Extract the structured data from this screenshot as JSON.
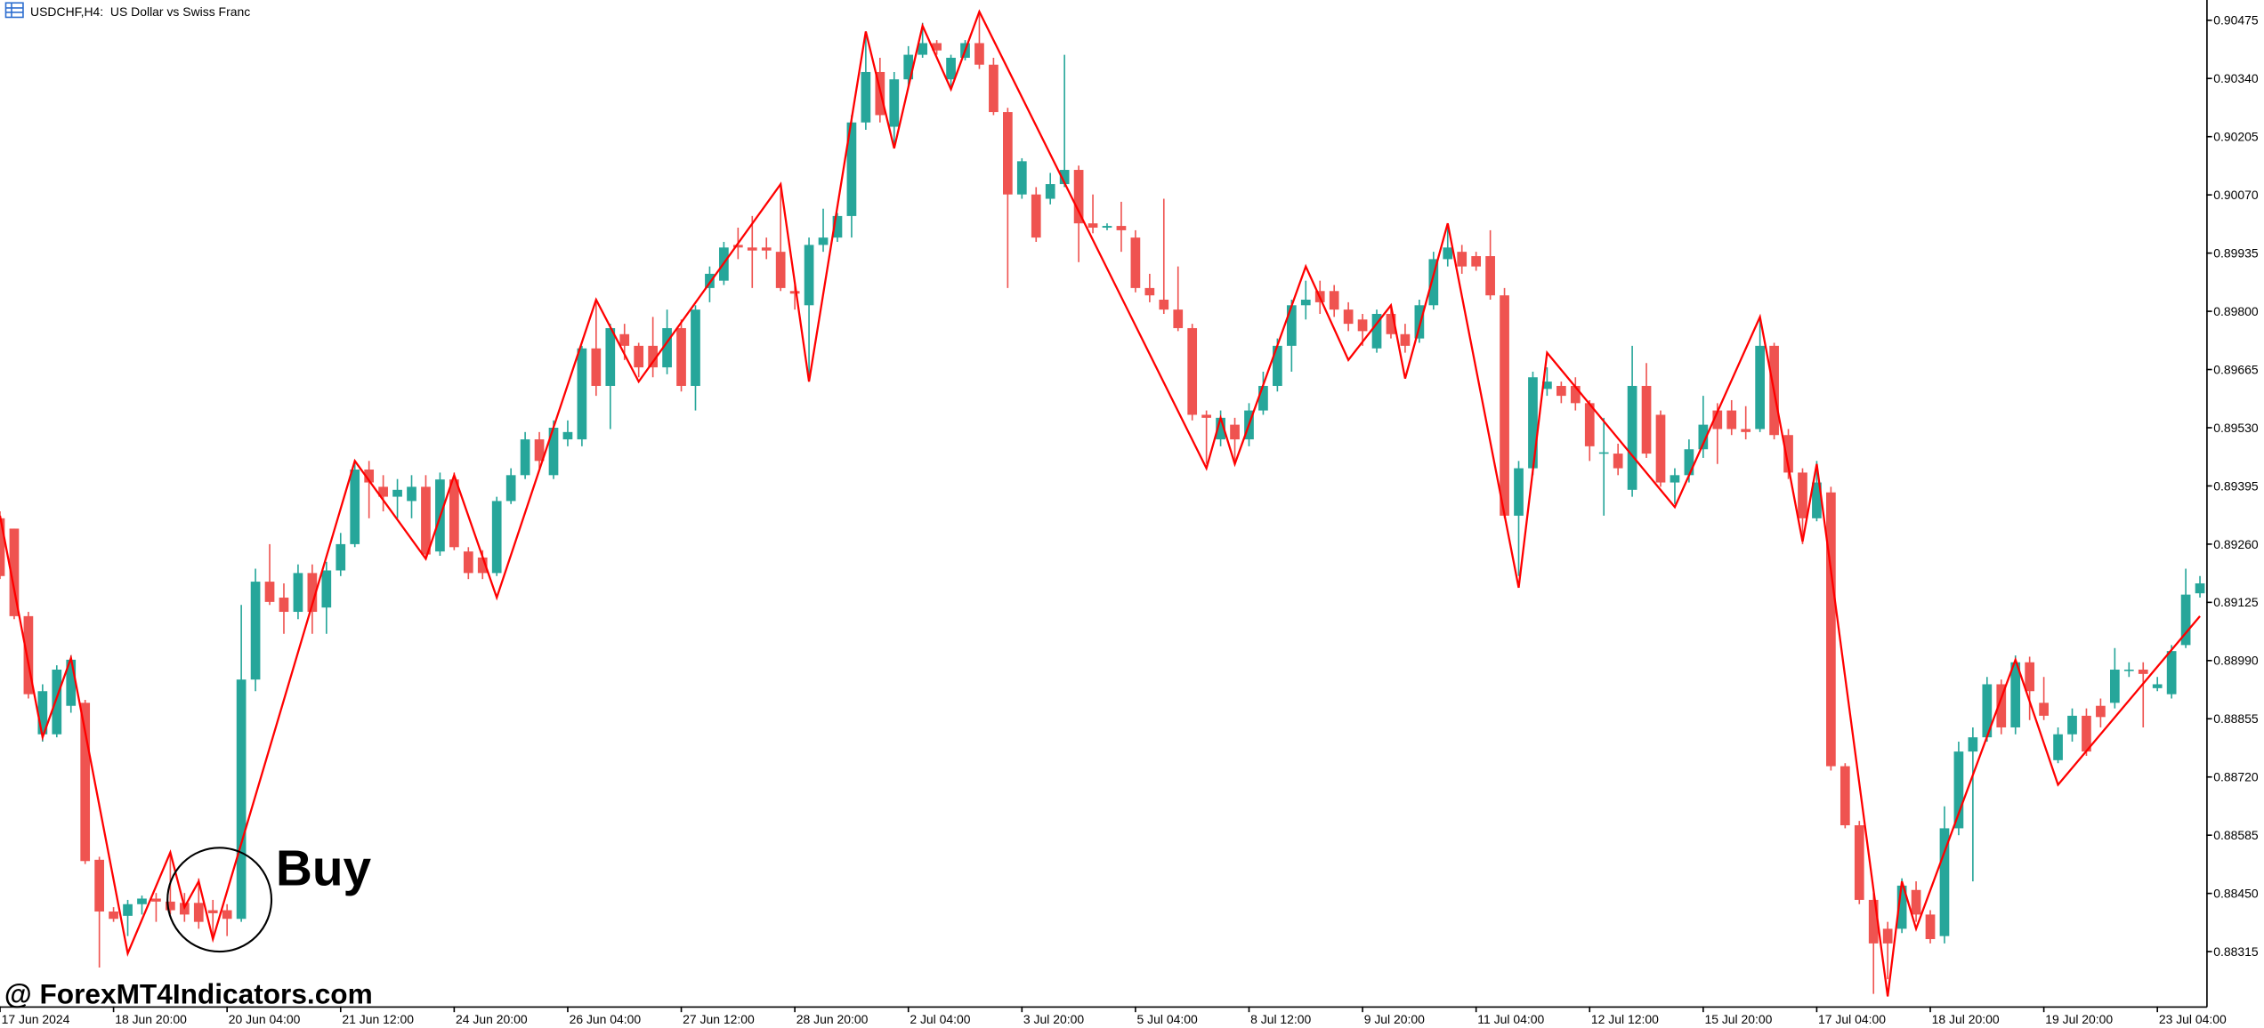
{
  "chart_data": {
    "type": "candlestick",
    "title": "USDCHF,H4:  US Dollar vs Swiss Franc",
    "annotation": "Buy",
    "watermark": "@ ForexMT4Indicators.com",
    "up_color": "#26a69a",
    "down_color": "#ef5350",
    "categories": [
      "17 Jun 2024",
      null,
      null,
      null,
      null,
      null,
      null,
      null,
      "18 Jun 20:00",
      null,
      null,
      null,
      null,
      null,
      null,
      null,
      "20 Jun 04:00",
      null,
      null,
      null,
      null,
      null,
      null,
      null,
      "21 Jun 12:00",
      null,
      null,
      null,
      null,
      null,
      null,
      null,
      "24 Jun 20:00",
      null,
      null,
      null,
      null,
      null,
      null,
      null,
      "26 Jun 04:00",
      null,
      null,
      null,
      null,
      null,
      null,
      null,
      "27 Jun 12:00",
      null,
      null,
      null,
      null,
      null,
      null,
      null,
      "28 Jun 20:00",
      null,
      null,
      null,
      null,
      null,
      null,
      null,
      "2 Jul 04:00",
      null,
      null,
      null,
      null,
      null,
      null,
      null,
      "3 Jul 20:00",
      null,
      null,
      null,
      null,
      null,
      null,
      null,
      "5 Jul 04:00",
      null,
      null,
      null,
      null,
      null,
      null,
      null,
      "8 Jul 12:00",
      null,
      null,
      null,
      null,
      null,
      null,
      null,
      "9 Jul 20:00",
      null,
      null,
      null,
      null,
      null,
      null,
      null,
      "11 Jul 04:00",
      null,
      null,
      null,
      null,
      null,
      null,
      null,
      "12 Jul 12:00",
      null,
      null,
      null,
      null,
      null,
      null,
      null,
      "15 Jul 20:00",
      null,
      null,
      null,
      null,
      null,
      null,
      null,
      "17 Jul 04:00",
      null,
      null,
      null,
      null,
      null,
      null,
      null,
      "18 Jul 20:00",
      null,
      null,
      null,
      null,
      null,
      null,
      null,
      "19 Jul 20:00",
      null,
      null,
      null,
      null,
      null,
      null,
      null,
      "23 Jul 04:00",
      null,
      null,
      null
    ],
    "open": [
      0.8932,
      0.89296,
      0.89093,
      0.88819,
      0.88819,
      0.88885,
      0.88892,
      0.88528,
      0.88408,
      0.88398,
      0.88425,
      0.88438,
      0.88431,
      0.88428,
      0.88428,
      0.88411,
      0.88411,
      0.88391,
      0.88946,
      0.89173,
      0.89136,
      0.89103,
      0.89193,
      0.89113,
      0.89199,
      0.8926,
      0.89433,
      0.89393,
      0.8937,
      0.8936,
      0.89393,
      0.89243,
      0.8941,
      0.89243,
      0.89229,
      0.89193,
      0.8936,
      0.8942,
      0.89503,
      0.8942,
      0.89503,
      0.89503,
      0.89714,
      0.89627,
      0.89747,
      0.8972,
      0.8972,
      0.8967,
      0.89761,
      0.89627,
      0.89854,
      0.89871,
      0.89954,
      0.89948,
      0.89948,
      0.89938,
      0.89847,
      0.89814,
      0.89954,
      0.89971,
      0.90021,
      0.90238,
      0.90355,
      0.90228,
      0.90338,
      0.90395,
      0.90422,
      0.90338,
      0.90388,
      0.90422,
      0.90372,
      0.90262,
      0.90071,
      0.90071,
      0.90061,
      0.90095,
      0.90128,
      0.90004,
      0.89994,
      0.89998,
      0.89971,
      0.89854,
      0.89827,
      0.89804,
      0.89761,
      0.8956,
      0.89503,
      0.89537,
      0.89503,
      0.8957,
      0.89627,
      0.8972,
      0.89814,
      0.89847,
      0.89847,
      0.89804,
      0.89781,
      0.89714,
      0.89794,
      0.89747,
      0.89737,
      0.89814,
      0.89921,
      0.89938,
      0.89928,
      0.89928,
      0.89837,
      0.89326,
      0.89436,
      0.8962,
      0.89627,
      0.89627,
      0.89587,
      0.8947,
      0.8947,
      0.89386,
      0.89627,
      0.8956,
      0.89403,
      0.8942,
      0.8948,
      0.8957,
      0.8957,
      0.89527,
      0.89527,
      0.8972,
      0.89513,
      0.89426,
      0.8932,
      0.8938,
      0.88745,
      0.88608,
      0.88435,
      0.88368,
      0.88368,
      0.88458,
      0.88401,
      0.88351,
      0.88601,
      0.88779,
      0.88812,
      0.88935,
      0.88835,
      0.88986,
      0.88892,
      0.88759,
      0.88819,
      0.88862,
      0.88885,
      0.88892,
      0.88969,
      0.88969,
      0.88926,
      0.88912,
      0.89026,
      0.89146
    ],
    "high": [
      0.89336,
      0.89296,
      0.89103,
      0.88935,
      0.88979,
      0.89002,
      0.88899,
      0.88535,
      0.88418,
      0.88435,
      0.88445,
      0.88451,
      0.88545,
      0.88451,
      0.88485,
      0.88435,
      0.88425,
      0.89119,
      0.89203,
      0.8926,
      0.89169,
      0.89213,
      0.89213,
      0.89219,
      0.89286,
      0.89453,
      0.89453,
      0.8942,
      0.89411,
      0.8942,
      0.8942,
      0.89426,
      0.89426,
      0.89253,
      0.89246,
      0.8937,
      0.89436,
      0.8952,
      0.8952,
      0.89547,
      0.89547,
      0.8972,
      0.89821,
      0.89771,
      0.89771,
      0.89727,
      0.89787,
      0.89804,
      0.89781,
      0.89814,
      0.89904,
      0.89961,
      0.89994,
      0.90021,
      0.89971,
      0.90095,
      0.89861,
      0.89971,
      0.90038,
      0.90028,
      0.90255,
      0.90449,
      0.90388,
      0.90355,
      0.90415,
      0.90469,
      0.90429,
      0.90395,
      0.90429,
      0.90495,
      0.90388,
      0.90272,
      0.90155,
      0.90088,
      0.90121,
      0.90395,
      0.90138,
      0.90071,
      0.90004,
      0.90054,
      0.89988,
      0.89887,
      0.90061,
      0.89904,
      0.89771,
      0.8957,
      0.8957,
      0.89553,
      0.89587,
      0.8966,
      0.89737,
      0.89827,
      0.89871,
      0.89871,
      0.89861,
      0.89821,
      0.89794,
      0.89804,
      0.89814,
      0.89771,
      0.89827,
      0.89938,
      0.90004,
      0.89954,
      0.89938,
      0.89988,
      0.89854,
      0.89453,
      0.8966,
      0.8967,
      0.89637,
      0.89647,
      0.89594,
      0.89553,
      0.89493,
      0.8972,
      0.8968,
      0.8957,
      0.89436,
      0.89503,
      0.89604,
      0.89587,
      0.89594,
      0.8958,
      0.89787,
      0.89727,
      0.89527,
      0.89436,
      0.89453,
      0.89393,
      0.88752,
      0.88618,
      0.88451,
      0.88384,
      0.88485,
      0.88478,
      0.88411,
      0.88652,
      0.88802,
      0.88835,
      0.88952,
      0.88946,
      0.89002,
      0.88999,
      0.88952,
      0.88835,
      0.88879,
      0.88879,
      0.88902,
      0.89019,
      0.88986,
      0.88986,
      0.88952,
      0.89026,
      0.89203,
      0.89186
    ],
    "low": [
      0.89179,
      0.89086,
      0.88902,
      0.88802,
      0.88812,
      0.88869,
      0.88518,
      0.88278,
      0.88384,
      0.88351,
      0.88401,
      0.88384,
      0.88401,
      0.88384,
      0.88368,
      0.88351,
      0.88351,
      0.88384,
      0.88919,
      0.89119,
      0.89052,
      0.89086,
      0.89052,
      0.89052,
      0.89186,
      0.89253,
      0.8932,
      0.89336,
      0.8932,
      0.8932,
      0.89226,
      0.89233,
      0.89246,
      0.89179,
      0.89179,
      0.89186,
      0.89353,
      0.89411,
      0.89436,
      0.89411,
      0.89487,
      0.89487,
      0.89604,
      0.89527,
      0.89687,
      0.89647,
      0.89647,
      0.89654,
      0.89614,
      0.8957,
      0.89821,
      0.89861,
      0.89921,
      0.89854,
      0.89921,
      0.89847,
      0.89804,
      0.89637,
      0.89938,
      0.89961,
      0.89971,
      0.90221,
      0.90238,
      0.90181,
      0.9032,
      0.90388,
      0.90395,
      0.90315,
      0.90382,
      0.90362,
      0.90255,
      0.89854,
      0.90061,
      0.89961,
      0.90048,
      0.90088,
      0.89914,
      0.89981,
      0.89988,
      0.89938,
      0.89844,
      0.89821,
      0.89794,
      0.89754,
      0.89547,
      0.89446,
      0.89487,
      0.89446,
      0.89487,
      0.8956,
      0.89614,
      0.8966,
      0.89781,
      0.89794,
      0.89787,
      0.89754,
      0.8972,
      0.89704,
      0.89737,
      0.89704,
      0.89727,
      0.89804,
      0.89904,
      0.89887,
      0.89894,
      0.89827,
      0.8932,
      0.89186,
      0.8942,
      0.89604,
      0.89587,
      0.8957,
      0.89453,
      0.89326,
      0.8942,
      0.8937,
      0.8946,
      0.89393,
      0.89353,
      0.89403,
      0.8946,
      0.89446,
      0.89513,
      0.89503,
      0.8952,
      0.89503,
      0.89411,
      0.8926,
      0.89313,
      0.88735,
      0.88601,
      0.88425,
      0.88217,
      0.88251,
      0.88358,
      0.88384,
      0.88334,
      0.88334,
      0.88585,
      0.88478,
      0.88802,
      0.88819,
      0.88819,
      0.88852,
      0.88852,
      0.88752,
      0.88802,
      0.88769,
      0.88835,
      0.88879,
      0.88952,
      0.88835,
      0.88919,
      0.88902,
      0.89019,
      0.89136
    ],
    "close": [
      0.89186,
      0.89093,
      0.88912,
      0.88919,
      0.88969,
      0.88992,
      0.88525,
      0.88408,
      0.88391,
      0.88425,
      0.88438,
      0.88431,
      0.88411,
      0.88401,
      0.88384,
      0.88404,
      0.88391,
      0.88946,
      0.89173,
      0.89126,
      0.89103,
      0.89193,
      0.89103,
      0.89199,
      0.8926,
      0.89433,
      0.89403,
      0.8937,
      0.89386,
      0.89393,
      0.89236,
      0.8941,
      0.89253,
      0.89193,
      0.89193,
      0.8936,
      0.8942,
      0.89503,
      0.89453,
      0.8953,
      0.8952,
      0.89714,
      0.89627,
      0.89761,
      0.8972,
      0.8967,
      0.8967,
      0.89761,
      0.89627,
      0.89804,
      0.89887,
      0.89948,
      0.89948,
      0.89941,
      0.89941,
      0.89854,
      0.89841,
      0.89954,
      0.89971,
      0.90021,
      0.90238,
      0.90355,
      0.90255,
      0.90338,
      0.90395,
      0.90422,
      0.90405,
      0.90388,
      0.90422,
      0.90372,
      0.90262,
      0.90071,
      0.90148,
      0.89971,
      0.90095,
      0.90128,
      0.90004,
      0.89994,
      0.89998,
      0.89988,
      0.89854,
      0.89837,
      0.89804,
      0.89761,
      0.8956,
      0.89553,
      0.89553,
      0.89503,
      0.8957,
      0.89627,
      0.8972,
      0.89814,
      0.89827,
      0.89821,
      0.89804,
      0.89771,
      0.89754,
      0.89794,
      0.89747,
      0.8972,
      0.89814,
      0.89921,
      0.89948,
      0.89904,
      0.89904,
      0.89837,
      0.89326,
      0.89436,
      0.89647,
      0.89637,
      0.89604,
      0.89587,
      0.89487,
      0.89473,
      0.89436,
      0.89627,
      0.8947,
      0.89403,
      0.8942,
      0.8948,
      0.89537,
      0.89527,
      0.89527,
      0.8952,
      0.8972,
      0.89513,
      0.89426,
      0.8932,
      0.89403,
      0.88745,
      0.88608,
      0.88435,
      0.88334,
      0.88334,
      0.88468,
      0.88401,
      0.88344,
      0.88601,
      0.88779,
      0.88812,
      0.88935,
      0.88835,
      0.88986,
      0.88919,
      0.88862,
      0.88819,
      0.88862,
      0.88779,
      0.88859,
      0.88969,
      0.88969,
      0.88959,
      0.88935,
      0.89012,
      0.89143,
      0.89169
    ],
    "zigzag": {
      "color": "#ff0000",
      "x": [
        0,
        3,
        5,
        9,
        12,
        13,
        14,
        15,
        25,
        30,
        32,
        35,
        42,
        45,
        55,
        57,
        61,
        63,
        65,
        67,
        69,
        85,
        86,
        87,
        92,
        95,
        98,
        99,
        102,
        107,
        109,
        118,
        124,
        127,
        128,
        133,
        134,
        135,
        142,
        145,
        155
      ],
      "values": [
        0.89326,
        0.88812,
        0.88996,
        0.88311,
        0.88545,
        0.88418,
        0.88478,
        0.88344,
        0.89453,
        0.89226,
        0.8942,
        0.89136,
        0.89827,
        0.89637,
        0.90095,
        0.89637,
        0.90449,
        0.90178,
        0.90462,
        0.90315,
        0.90495,
        0.89436,
        0.89553,
        0.89446,
        0.89904,
        0.89687,
        0.89814,
        0.89644,
        0.90004,
        0.89159,
        0.89704,
        0.89346,
        0.89787,
        0.89266,
        0.89446,
        0.88211,
        0.88478,
        0.88368,
        0.88992,
        0.88702,
        0.89093
      ]
    },
    "ylim": [
      0.88188,
      0.90522
    ],
    "yticks": [
      0.90475,
      {
        "value": 0.9034,
        "label": "0.90340"
      },
      0.90205,
      {
        "value": 0.9007,
        "label": "0.90070"
      },
      0.89935,
      {
        "value": 0.898,
        "label": "0.89800"
      },
      0.89665,
      {
        "value": 0.8953,
        "label": "0.89530"
      },
      0.89395,
      {
        "value": 0.8926,
        "label": "0.89260"
      },
      0.89125,
      {
        "value": 0.8899,
        "label": "0.88990"
      },
      0.88855,
      {
        "value": 0.8872,
        "label": "0.88720"
      },
      0.88585,
      {
        "value": 0.8845,
        "label": "0.88450"
      },
      0.88315
    ]
  }
}
